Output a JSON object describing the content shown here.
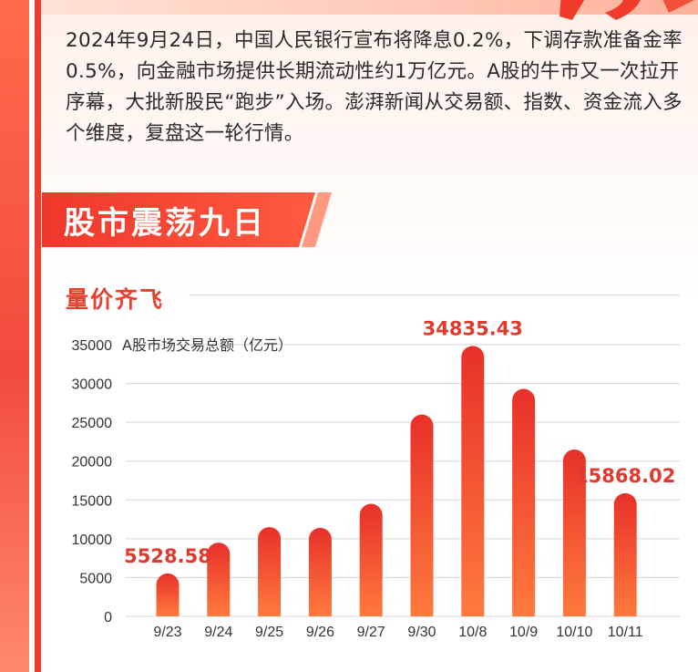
{
  "intro_text": "2024年9月24日，中国人民银行宣布将降息0.2%，下调存款准备金率0.5%，向金融市场提供长期流动性约1万亿元。A股的牛市又一次拉开序幕，大批新股民“跑步”入场。澎湃新闻从交易额、指数、资金流入多个维度，复盘这一轮行情。",
  "section_title": "股市震荡九日",
  "subsection_title": "量价齐飞",
  "colors": {
    "accent": "#e8402f",
    "bar_top": "#e8302a",
    "bar_bottom": "#ff7a3d",
    "label": "#e03a2f"
  },
  "chart_data": {
    "type": "bar",
    "title": "A股市场交易总额（亿元）",
    "categories": [
      "9/23",
      "9/24",
      "9/25",
      "9/26",
      "9/27",
      "9/30",
      "10/8",
      "10/9",
      "10/10",
      "10/11"
    ],
    "values": [
      5528.58,
      9500,
      11500,
      11400,
      14500,
      26000,
      34835.43,
      29300,
      21500,
      15868.02
    ],
    "data_labels": [
      {
        "category": "9/23",
        "text": "5528.58"
      },
      {
        "category": "10/8",
        "text": "34835.43"
      },
      {
        "category": "10/11",
        "text": "15868.02"
      }
    ],
    "ylim": [
      0,
      35000
    ],
    "yticks": [
      0,
      5000,
      10000,
      15000,
      20000,
      25000,
      30000,
      35000
    ],
    "grid": true,
    "xlabel": "",
    "ylabel": ""
  }
}
